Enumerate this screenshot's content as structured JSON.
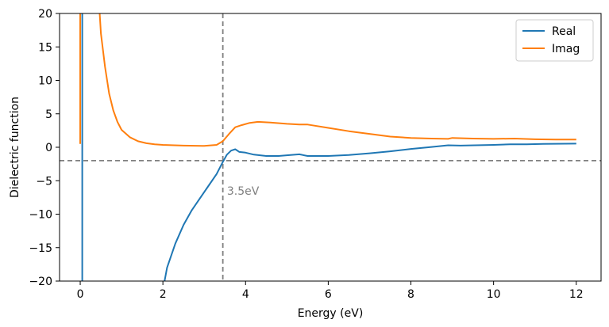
{
  "chart_data": {
    "type": "line",
    "title": "",
    "xlabel": "Energy (eV)",
    "ylabel": "Dielectric function",
    "xlim": [
      -0.5,
      12.6
    ],
    "ylim": [
      -20,
      20
    ],
    "xticks": [
      0,
      2,
      4,
      6,
      8,
      10,
      12
    ],
    "yticks": [
      -20,
      -15,
      -10,
      -5,
      0,
      5,
      10,
      15,
      20
    ],
    "xtick_labels": [
      "0",
      "2",
      "4",
      "6",
      "8",
      "10",
      "12"
    ],
    "ytick_labels": [
      "−20",
      "−15",
      "−10",
      "−5",
      "0",
      "5",
      "10",
      "15",
      "20"
    ],
    "grid": false,
    "legend_position": "top-right",
    "series": [
      {
        "name": "Real",
        "color": "#1f77b4",
        "segments": [
          [
            [
              0.05,
              22
            ],
            [
              0.05,
              -22
            ]
          ],
          [
            [
              1.98,
              -22
            ],
            [
              2.1,
              -18.0
            ],
            [
              2.3,
              -14.4
            ],
            [
              2.5,
              -11.6
            ],
            [
              2.7,
              -9.4
            ],
            [
              2.9,
              -7.6
            ],
            [
              3.1,
              -5.8
            ],
            [
              3.3,
              -4.0
            ],
            [
              3.45,
              -2.2
            ],
            [
              3.55,
              -1.1
            ],
            [
              3.65,
              -0.5
            ],
            [
              3.75,
              -0.3
            ],
            [
              3.85,
              -0.7
            ],
            [
              4.0,
              -0.8
            ],
            [
              4.2,
              -1.1
            ],
            [
              4.5,
              -1.3
            ],
            [
              4.8,
              -1.3
            ],
            [
              5.0,
              -1.2
            ],
            [
              5.3,
              -1.05
            ],
            [
              5.5,
              -1.3
            ],
            [
              6.0,
              -1.3
            ],
            [
              6.5,
              -1.15
            ],
            [
              7.0,
              -0.9
            ],
            [
              7.5,
              -0.6
            ],
            [
              8.0,
              -0.25
            ],
            [
              8.5,
              0.05
            ],
            [
              8.9,
              0.3
            ],
            [
              9.2,
              0.25
            ],
            [
              10.0,
              0.35
            ],
            [
              10.4,
              0.45
            ],
            [
              10.8,
              0.45
            ],
            [
              11.2,
              0.5
            ],
            [
              12.0,
              0.55
            ]
          ]
        ]
      },
      {
        "name": "Imag",
        "color": "#ff7f0e",
        "segments": [
          [
            [
              0.0,
              0.5
            ],
            [
              0.0,
              22
            ]
          ],
          [
            [
              0.45,
              22
            ],
            [
              0.5,
              17.0
            ],
            [
              0.6,
              12.0
            ],
            [
              0.7,
              8.0
            ],
            [
              0.8,
              5.5
            ],
            [
              0.9,
              3.8
            ],
            [
              1.0,
              2.6
            ],
            [
              1.2,
              1.5
            ],
            [
              1.4,
              0.9
            ],
            [
              1.6,
              0.6
            ],
            [
              1.8,
              0.45
            ],
            [
              2.0,
              0.35
            ],
            [
              2.5,
              0.25
            ],
            [
              3.0,
              0.2
            ],
            [
              3.3,
              0.35
            ],
            [
              3.45,
              0.9
            ],
            [
              3.6,
              2.0
            ],
            [
              3.75,
              3.0
            ],
            [
              3.9,
              3.3
            ],
            [
              4.1,
              3.65
            ],
            [
              4.3,
              3.8
            ],
            [
              4.6,
              3.7
            ],
            [
              5.0,
              3.5
            ],
            [
              5.3,
              3.4
            ],
            [
              5.5,
              3.4
            ],
            [
              6.0,
              2.9
            ],
            [
              6.5,
              2.4
            ],
            [
              7.0,
              2.0
            ],
            [
              7.5,
              1.6
            ],
            [
              8.0,
              1.4
            ],
            [
              8.5,
              1.3
            ],
            [
              8.9,
              1.25
            ],
            [
              9.0,
              1.4
            ],
            [
              9.5,
              1.3
            ],
            [
              10.0,
              1.25
            ],
            [
              10.5,
              1.3
            ],
            [
              11.0,
              1.2
            ],
            [
              11.5,
              1.15
            ],
            [
              12.0,
              1.15
            ]
          ]
        ]
      }
    ],
    "reference_lines": [
      {
        "orientation": "vertical",
        "value": 3.45,
        "color": "#808080",
        "style": "dashed"
      },
      {
        "orientation": "horizontal",
        "value": -2,
        "color": "#808080",
        "style": "dashed"
      }
    ],
    "annotations": [
      {
        "text": "3.5eV",
        "x": 3.55,
        "y": -6.5,
        "color": "#808080"
      }
    ]
  }
}
